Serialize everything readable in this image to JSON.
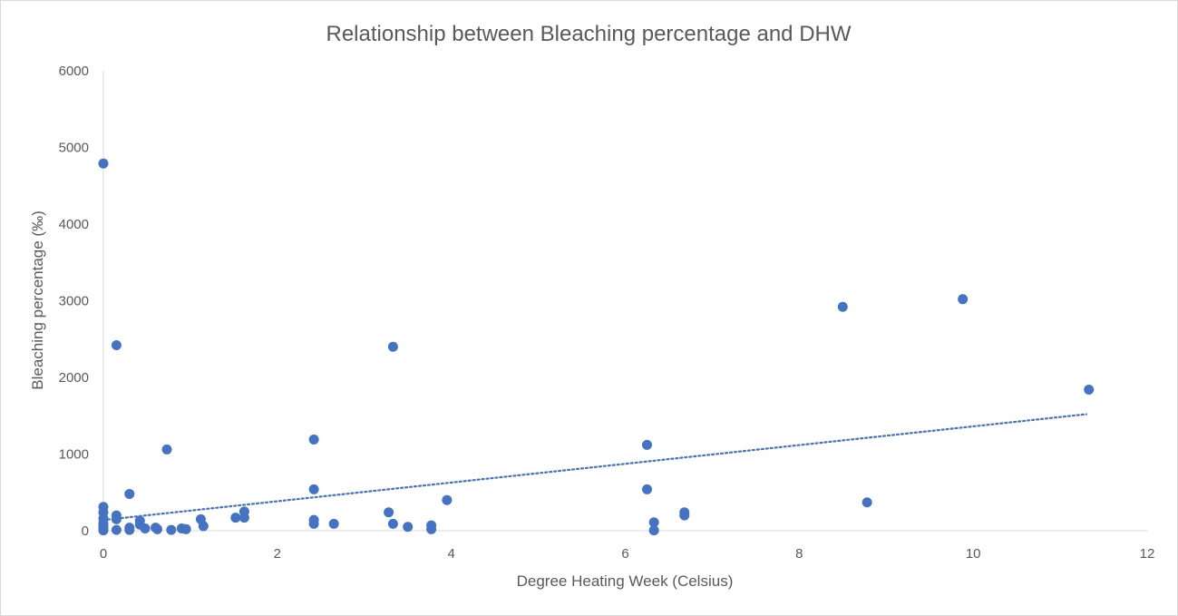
{
  "chart_data": {
    "type": "scatter",
    "title": "Relationship between Bleaching percentage and DHW",
    "xlabel": "Degree Heating Week (Celsius)",
    "ylabel": "Bleaching percentage (‰)",
    "xlim": [
      0,
      12
    ],
    "ylim": [
      0,
      6000
    ],
    "x_ticks": [
      "0",
      "2",
      "4",
      "6",
      "8",
      "10",
      "12"
    ],
    "y_ticks": [
      "0",
      "1000",
      "2000",
      "3000",
      "4000",
      "5000",
      "6000"
    ],
    "grid": false,
    "legend": "none",
    "marker_color": "#4472c4",
    "trendline": {
      "style": "dotted",
      "color": "#4472c4",
      "x": [
        0,
        11.3
      ],
      "y": [
        140,
        1520
      ]
    },
    "points": [
      {
        "x": 0,
        "y": 4790
      },
      {
        "x": 0,
        "y": 310
      },
      {
        "x": 0,
        "y": 240
      },
      {
        "x": 0,
        "y": 160
      },
      {
        "x": 0,
        "y": 100
      },
      {
        "x": 0,
        "y": 60
      },
      {
        "x": 0,
        "y": 30
      },
      {
        "x": 0,
        "y": 5
      },
      {
        "x": 0.15,
        "y": 2420
      },
      {
        "x": 0.15,
        "y": 200
      },
      {
        "x": 0.15,
        "y": 150
      },
      {
        "x": 0.15,
        "y": 10
      },
      {
        "x": 0.3,
        "y": 480
      },
      {
        "x": 0.3,
        "y": 40
      },
      {
        "x": 0.3,
        "y": 10
      },
      {
        "x": 0.42,
        "y": 130
      },
      {
        "x": 0.42,
        "y": 80
      },
      {
        "x": 0.48,
        "y": 30
      },
      {
        "x": 0.6,
        "y": 40
      },
      {
        "x": 0.62,
        "y": 20
      },
      {
        "x": 0.73,
        "y": 1060
      },
      {
        "x": 0.78,
        "y": 10
      },
      {
        "x": 0.9,
        "y": 30
      },
      {
        "x": 0.95,
        "y": 20
      },
      {
        "x": 1.12,
        "y": 150
      },
      {
        "x": 1.15,
        "y": 60
      },
      {
        "x": 1.52,
        "y": 170
      },
      {
        "x": 1.62,
        "y": 250
      },
      {
        "x": 1.62,
        "y": 170
      },
      {
        "x": 2.42,
        "y": 1190
      },
      {
        "x": 2.42,
        "y": 540
      },
      {
        "x": 2.42,
        "y": 140
      },
      {
        "x": 2.42,
        "y": 90
      },
      {
        "x": 2.65,
        "y": 90
      },
      {
        "x": 3.28,
        "y": 240
      },
      {
        "x": 3.33,
        "y": 2400
      },
      {
        "x": 3.33,
        "y": 90
      },
      {
        "x": 3.5,
        "y": 50
      },
      {
        "x": 3.77,
        "y": 70
      },
      {
        "x": 3.77,
        "y": 20
      },
      {
        "x": 3.95,
        "y": 400
      },
      {
        "x": 6.25,
        "y": 1120
      },
      {
        "x": 6.25,
        "y": 540
      },
      {
        "x": 6.33,
        "y": 110
      },
      {
        "x": 6.33,
        "y": 5
      },
      {
        "x": 6.68,
        "y": 240
      },
      {
        "x": 6.68,
        "y": 200
      },
      {
        "x": 8.5,
        "y": 2920
      },
      {
        "x": 8.78,
        "y": 370
      },
      {
        "x": 9.88,
        "y": 3020
      },
      {
        "x": 11.33,
        "y": 1840
      }
    ]
  }
}
